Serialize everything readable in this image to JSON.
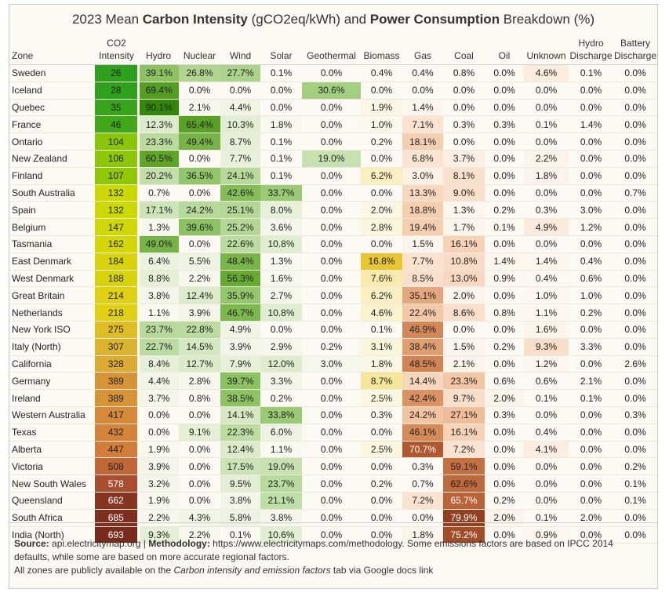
{
  "title": {
    "prefix": "2023 Mean ",
    "bold1": "Carbon Intensity",
    "middle": " (gCO2eq/kWh) and ",
    "bold2": "Power Consumption",
    "suffix": " Breakdown (%)"
  },
  "columns": [
    "Zone",
    "CO2\nIntensity",
    "Hydro",
    "Nuclear",
    "Wind",
    "Solar",
    "Geothermal",
    "Biomass",
    "Gas",
    "Coal",
    "Oil",
    "Unknown",
    "Hydro\nDischarge",
    "Battery\nDischarge"
  ],
  "footer": {
    "source_label": "Source:",
    "source_text": " api.electricitymap.org | ",
    "method_label": "Methodology:",
    "method_text": " https://www.electricitymaps.com/methodology. Some emissions factors are based on IPCC 2014 defaults, while some are based on more accurate regional factors.",
    "line2_prefix": "All zones are publicly available on the ",
    "line2_italic": "Carbon intensity and emission factors",
    "line2_suffix": " tab via Google docs link"
  },
  "chart_data": {
    "type": "table",
    "title": "2023 Mean Carbon Intensity (gCO2eq/kWh) and Power Consumption Breakdown (%)",
    "ci_range": [
      26,
      693
    ],
    "rows": [
      {
        "zone": "Sweden",
        "ci": "26",
        "values": [
          "39.1%",
          "26.8%",
          "27.7%",
          "0.1%",
          "0.0%",
          "0.4%",
          "0.4%",
          "0.8%",
          "0.0%",
          "4.6%",
          "0.1%",
          "0.0%"
        ]
      },
      {
        "zone": "Iceland",
        "ci": "28",
        "values": [
          "69.4%",
          "0.0%",
          "0.0%",
          "0.0%",
          "30.6%",
          "0.0%",
          "0.0%",
          "0.0%",
          "0.0%",
          "0.0%",
          "0.0%",
          "0.0%"
        ]
      },
      {
        "zone": "Quebec",
        "ci": "35",
        "values": [
          "90.1%",
          "2.1%",
          "4.4%",
          "0.0%",
          "0.0%",
          "1.9%",
          "1.4%",
          "0.0%",
          "0.0%",
          "0.0%",
          "0.0%",
          "0.0%"
        ]
      },
      {
        "zone": "France",
        "ci": "46",
        "values": [
          "12.3%",
          "65.4%",
          "10.3%",
          "1.8%",
          "0.0%",
          "1.0%",
          "7.1%",
          "0.3%",
          "0.3%",
          "0.1%",
          "1.4%",
          "0.0%"
        ]
      },
      {
        "zone": "Ontario",
        "ci": "104",
        "values": [
          "23.3%",
          "49.4%",
          "8.7%",
          "0.1%",
          "0.0%",
          "0.2%",
          "18.1%",
          "0.0%",
          "0.0%",
          "0.0%",
          "0.0%",
          "0.0%"
        ]
      },
      {
        "zone": "New Zealand",
        "ci": "106",
        "values": [
          "60.5%",
          "0.0%",
          "7.7%",
          "0.1%",
          "19.0%",
          "0.0%",
          "6.8%",
          "3.7%",
          "0.0%",
          "2.2%",
          "0.0%",
          "0.0%"
        ]
      },
      {
        "zone": "Finland",
        "ci": "107",
        "values": [
          "20.2%",
          "36.5%",
          "24.1%",
          "0.1%",
          "0.0%",
          "6.2%",
          "3.0%",
          "8.1%",
          "0.0%",
          "1.8%",
          "0.0%",
          "0.0%"
        ]
      },
      {
        "zone": "South Australia",
        "ci": "132",
        "values": [
          "0.7%",
          "0.0%",
          "42.6%",
          "33.7%",
          "0.0%",
          "0.0%",
          "13.3%",
          "9.0%",
          "0.0%",
          "0.0%",
          "0.0%",
          "0.7%"
        ]
      },
      {
        "zone": "Spain",
        "ci": "132",
        "values": [
          "17.1%",
          "24.2%",
          "25.1%",
          "8.0%",
          "0.0%",
          "2.0%",
          "18.8%",
          "1.3%",
          "0.2%",
          "0.3%",
          "3.0%",
          "0.0%"
        ]
      },
      {
        "zone": "Belgium",
        "ci": "147",
        "values": [
          "1.3%",
          "39.6%",
          "25.2%",
          "3.6%",
          "0.0%",
          "2.8%",
          "19.4%",
          "1.7%",
          "0.1%",
          "4.9%",
          "1.2%",
          "0.0%"
        ]
      },
      {
        "zone": "Tasmania",
        "ci": "162",
        "values": [
          "49.0%",
          "0.0%",
          "22.6%",
          "10.8%",
          "0.0%",
          "0.0%",
          "1.5%",
          "16.1%",
          "0.0%",
          "0.0%",
          "0.0%",
          "0.0%"
        ]
      },
      {
        "zone": "East Denmark",
        "ci": "184",
        "values": [
          "6.4%",
          "5.5%",
          "48.4%",
          "1.3%",
          "0.0%",
          "16.8%",
          "7.7%",
          "10.8%",
          "1.4%",
          "1.4%",
          "0.4%",
          "0.0%"
        ]
      },
      {
        "zone": "West Denmark",
        "ci": "188",
        "values": [
          "8.8%",
          "2.2%",
          "56.3%",
          "1.6%",
          "0.0%",
          "7.6%",
          "8.5%",
          "13.0%",
          "0.9%",
          "0.4%",
          "0.6%",
          "0.0%"
        ]
      },
      {
        "zone": "Great Britain",
        "ci": "214",
        "values": [
          "3.8%",
          "12.4%",
          "35.9%",
          "2.7%",
          "0.0%",
          "6.2%",
          "35.1%",
          "2.0%",
          "0.0%",
          "1.0%",
          "1.0%",
          "0.0%"
        ]
      },
      {
        "zone": "Netherlands",
        "ci": "218",
        "values": [
          "1.1%",
          "3.9%",
          "46.7%",
          "10.8%",
          "0.0%",
          "4.6%",
          "22.4%",
          "8.6%",
          "0.8%",
          "1.1%",
          "0.2%",
          "0.0%"
        ]
      },
      {
        "zone": "New York ISO",
        "ci": "275",
        "values": [
          "23.7%",
          "22.8%",
          "4.9%",
          "0.0%",
          "0.0%",
          "0.1%",
          "46.9%",
          "0.0%",
          "0.0%",
          "1.6%",
          "0.0%",
          "0.0%"
        ]
      },
      {
        "zone": "Italy (North)",
        "ci": "307",
        "values": [
          "22.7%",
          "14.5%",
          "3.9%",
          "2.9%",
          "0.2%",
          "3.1%",
          "38.4%",
          "1.5%",
          "0.2%",
          "9.3%",
          "3.3%",
          "0.0%"
        ]
      },
      {
        "zone": "California",
        "ci": "328",
        "values": [
          "8.4%",
          "12.7%",
          "7.9%",
          "12.0%",
          "3.0%",
          "1.8%",
          "48.5%",
          "2.1%",
          "0.0%",
          "1.2%",
          "0.0%",
          "2.6%"
        ]
      },
      {
        "zone": "Germany",
        "ci": "389",
        "values": [
          "4.4%",
          "2.8%",
          "39.7%",
          "3.3%",
          "0.0%",
          "8.7%",
          "14.4%",
          "23.3%",
          "0.6%",
          "0.6%",
          "2.1%",
          "0.0%"
        ]
      },
      {
        "zone": "Ireland",
        "ci": "389",
        "values": [
          "3.7%",
          "0.8%",
          "38.5%",
          "0.2%",
          "0.0%",
          "2.5%",
          "42.4%",
          "9.7%",
          "2.0%",
          "0.1%",
          "0.1%",
          "0.0%"
        ]
      },
      {
        "zone": "Western Australia",
        "ci": "417",
        "values": [
          "0.0%",
          "0.0%",
          "14.1%",
          "33.8%",
          "0.0%",
          "0.3%",
          "24.2%",
          "27.1%",
          "0.3%",
          "0.0%",
          "0.0%",
          "0.3%"
        ]
      },
      {
        "zone": "Texas",
        "ci": "432",
        "values": [
          "0.0%",
          "9.1%",
          "22.3%",
          "6.0%",
          "0.0%",
          "0.0%",
          "46.1%",
          "16.1%",
          "0.0%",
          "0.4%",
          "0.0%",
          "0.0%"
        ]
      },
      {
        "zone": "Alberta",
        "ci": "447",
        "values": [
          "1.9%",
          "0.0%",
          "12.4%",
          "1.1%",
          "0.0%",
          "2.5%",
          "70.7%",
          "7.2%",
          "0.0%",
          "4.1%",
          "0.0%",
          "0.0%"
        ]
      },
      {
        "zone": "Victoria",
        "ci": "508",
        "values": [
          "3.9%",
          "0.0%",
          "17.5%",
          "19.0%",
          "0.0%",
          "0.0%",
          "0.3%",
          "59.1%",
          "0.0%",
          "0.0%",
          "0.0%",
          "0.2%"
        ]
      },
      {
        "zone": "New South Wales",
        "ci": "578",
        "values": [
          "3.2%",
          "0.0%",
          "9.5%",
          "23.7%",
          "0.0%",
          "0.2%",
          "0.7%",
          "62.6%",
          "0.0%",
          "0.0%",
          "0.0%",
          "0.1%"
        ]
      },
      {
        "zone": "Queensland",
        "ci": "662",
        "values": [
          "1.9%",
          "0.0%",
          "3.8%",
          "21.1%",
          "0.0%",
          "0.0%",
          "7.2%",
          "65.7%",
          "0.2%",
          "0.0%",
          "0.0%",
          "0.1%"
        ]
      },
      {
        "zone": "South Africa",
        "ci": "685",
        "values": [
          "2.2%",
          "4.3%",
          "5.8%",
          "3.8%",
          "0.0%",
          "0.0%",
          "0.0%",
          "79.9%",
          "2.0%",
          "0.1%",
          "2.0%",
          "0.0%"
        ]
      },
      {
        "zone": "India (North)",
        "ci": "693",
        "values": [
          "9.3%",
          "2.2%",
          "0.1%",
          "10.6%",
          "0.0%",
          "0.0%",
          "1.8%",
          "75.2%",
          "0.0%",
          "0.9%",
          "0.0%",
          "0.0%"
        ]
      }
    ]
  }
}
